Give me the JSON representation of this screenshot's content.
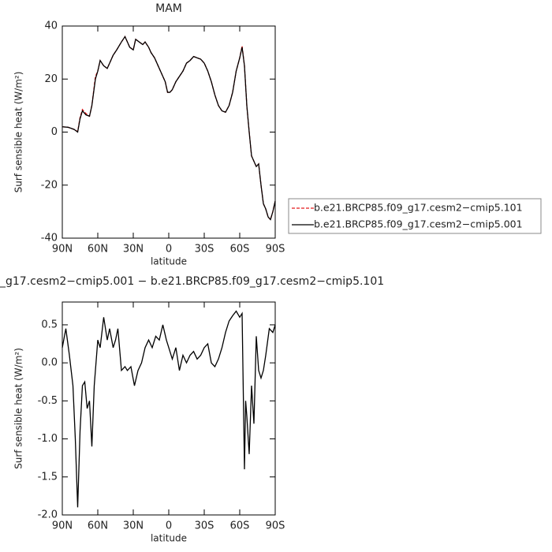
{
  "chart_data": [
    {
      "type": "line",
      "title": "MAM",
      "xlabel": "latitude",
      "ylabel": "Surf sensible heat (W/m²)",
      "xlim": [
        90,
        -90
      ],
      "ylim": [
        -40,
        40
      ],
      "xticks": [
        {
          "value": 90,
          "label": "90N"
        },
        {
          "value": 60,
          "label": "60N"
        },
        {
          "value": 30,
          "label": "30N"
        },
        0,
        {
          "value": -30,
          "label": "30S"
        },
        {
          "value": -60,
          "label": "60S"
        },
        {
          "value": -90,
          "label": "90S"
        }
      ],
      "yticks": [
        40,
        20,
        0,
        -20,
        -40
      ],
      "legend": "right",
      "x": [
        90,
        85,
        80,
        77,
        75,
        73,
        70,
        67,
        65,
        62,
        60,
        58,
        55,
        52,
        50,
        47,
        44,
        40,
        37,
        35,
        33,
        30,
        28,
        25,
        22,
        20,
        17,
        15,
        12,
        9,
        6,
        3,
        1,
        -1,
        -3,
        -6,
        -9,
        -12,
        -15,
        -18,
        -21,
        -24,
        -27,
        -30,
        -33,
        -36,
        -39,
        -42,
        -45,
        -48,
        -51,
        -54,
        -57,
        -60,
        -62,
        -64,
        -66,
        -68,
        -70,
        -72,
        -74,
        -76,
        -78,
        -80,
        -82,
        -84,
        -86,
        -88,
        -90
      ],
      "series": [
        {
          "name": "b.e21.BRCP85.f09_g17.cesm2−cmip5.101",
          "color": "#e41a1c",
          "dash": true,
          "values": [
            2,
            1.8,
            1,
            0.2,
            5.5,
            8.5,
            7,
            6,
            10,
            21,
            23,
            27,
            25,
            24,
            26,
            29,
            31,
            34,
            36,
            34,
            32,
            31,
            35,
            34,
            33,
            34,
            32,
            30,
            28,
            25,
            22,
            19,
            15,
            15,
            16,
            19,
            21,
            23,
            26,
            27,
            28.5,
            28,
            27.5,
            26,
            23,
            19,
            14,
            10,
            8,
            7.5,
            10,
            15,
            23,
            28,
            32.5,
            25,
            10,
            0,
            -9,
            -11,
            -13,
            -12,
            -20,
            -27,
            -29,
            -32,
            -33,
            -30,
            -26
          ]
        },
        {
          "name": "b.e21.BRCP85.f09_g17.cesm2−cmip5.001",
          "color": "#000000",
          "dash": false,
          "values": [
            2,
            1.8,
            1,
            0,
            5,
            8,
            6.5,
            6,
            10,
            20,
            23,
            27,
            25,
            24,
            26,
            29,
            31,
            34,
            36,
            34,
            32,
            31,
            35,
            34,
            33,
            34,
            32,
            30,
            28,
            25,
            22,
            19,
            15,
            15,
            16,
            19,
            21,
            23,
            26,
            27,
            28.5,
            28,
            27.5,
            26,
            23,
            19,
            14,
            10,
            8,
            7.5,
            10,
            15,
            23,
            28,
            32,
            25,
            10,
            0,
            -9,
            -11,
            -13,
            -12,
            -20,
            -27,
            -29,
            -32,
            -33,
            -30,
            -26
          ]
        }
      ]
    },
    {
      "type": "line",
      "title": "_g17.cesm2−cmip5.001 − b.e21.BRCP85.f09_g17.cesm2−cmip5.101",
      "xlabel": "latitude",
      "ylabel": "Surf sensible heat (W/m²)",
      "xlim": [
        90,
        -90
      ],
      "ylim": [
        -2,
        0.8
      ],
      "xticks": [
        {
          "value": 90,
          "label": "90N"
        },
        {
          "value": 60,
          "label": "60N"
        },
        {
          "value": 30,
          "label": "30N"
        },
        0,
        {
          "value": -30,
          "label": "30S"
        },
        {
          "value": -60,
          "label": "60S"
        },
        {
          "value": -90,
          "label": "90S"
        }
      ],
      "yticks": [
        0.5,
        {
          "value": 0,
          "label": "0.0"
        },
        -0.5,
        {
          "value": -1,
          "label": "-1.0"
        },
        -1.5,
        {
          "value": -2,
          "label": "-2.0"
        }
      ],
      "color": "#000000",
      "x": [
        90,
        87,
        84,
        81,
        79,
        77,
        75,
        73,
        71,
        69,
        67,
        65,
        63,
        60,
        58,
        55,
        52,
        50,
        47,
        45,
        43,
        40,
        37,
        35,
        32,
        29,
        26,
        23,
        20,
        17,
        14,
        11,
        8,
        5,
        2,
        0,
        -3,
        -6,
        -9,
        -12,
        -15,
        -18,
        -21,
        -24,
        -27,
        -30,
        -33,
        -36,
        -39,
        -42,
        -45,
        -48,
        -51,
        -54,
        -57,
        -60,
        -62,
        -64,
        -65,
        -66,
        -68,
        -70,
        -72,
        -74,
        -76,
        -78,
        -80,
        -82,
        -85,
        -88,
        -90
      ],
      "values": [
        0.2,
        0.45,
        0.1,
        -0.3,
        -1.0,
        -1.9,
        -0.9,
        -0.3,
        -0.25,
        -0.6,
        -0.5,
        -1.1,
        -0.3,
        0.3,
        0.2,
        0.6,
        0.3,
        0.45,
        0.2,
        0.3,
        0.45,
        -0.1,
        -0.05,
        -0.1,
        -0.05,
        -0.3,
        -0.1,
        0.0,
        0.2,
        0.3,
        0.2,
        0.35,
        0.3,
        0.5,
        0.3,
        0.2,
        0.05,
        0.2,
        -0.1,
        0.1,
        0.0,
        0.1,
        0.15,
        0.05,
        0.1,
        0.2,
        0.25,
        0.0,
        -0.05,
        0.05,
        0.2,
        0.4,
        0.55,
        0.62,
        0.68,
        0.6,
        0.65,
        -1.4,
        -0.5,
        -0.7,
        -1.2,
        -0.3,
        -0.8,
        0.35,
        -0.1,
        -0.2,
        -0.1,
        0.1,
        0.45,
        0.4,
        0.5
      ]
    }
  ]
}
